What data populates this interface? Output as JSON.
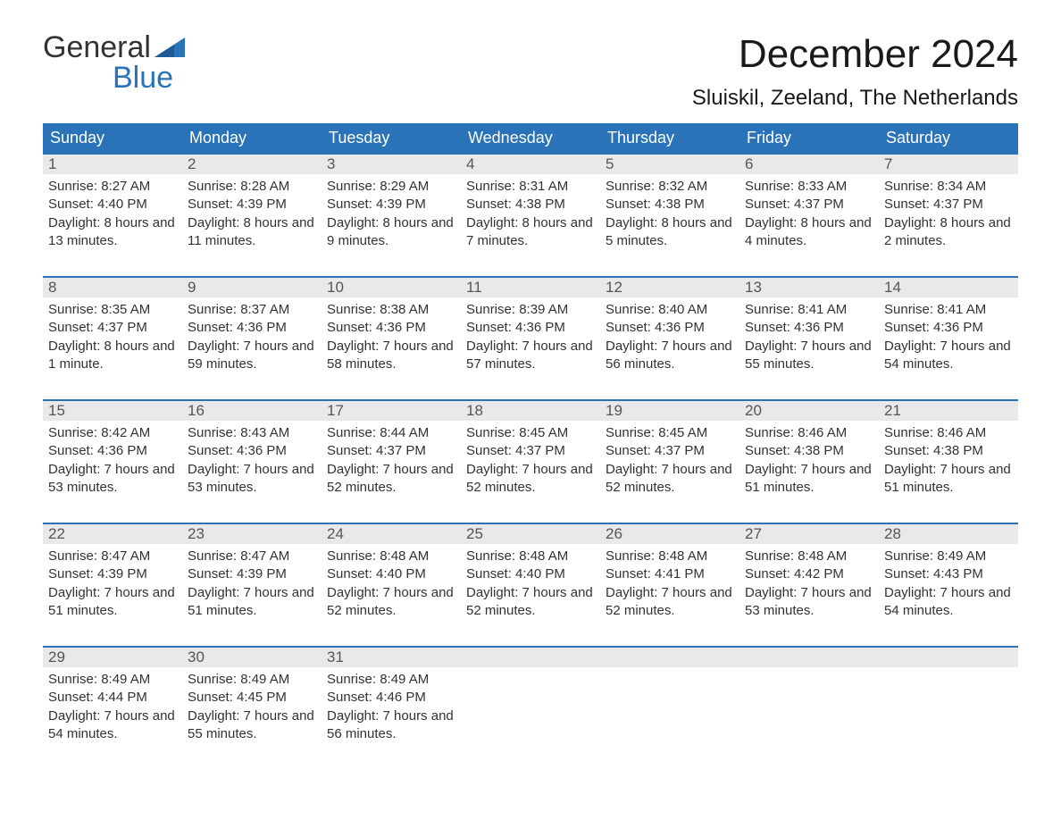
{
  "logo": {
    "word1": "General",
    "word2": "Blue"
  },
  "title": "December 2024",
  "location": "Sluiskil, Zeeland, The Netherlands",
  "header_bg": "#2a73b8",
  "header_fg": "#ffffff",
  "daynum_bg": "#e9e9e9",
  "week_border": "#2a73b8",
  "weekdays": [
    "Sunday",
    "Monday",
    "Tuesday",
    "Wednesday",
    "Thursday",
    "Friday",
    "Saturday"
  ],
  "weeks": [
    [
      {
        "n": "1",
        "sunrise": "8:27 AM",
        "sunset": "4:40 PM",
        "daylight": "8 hours and 13 minutes."
      },
      {
        "n": "2",
        "sunrise": "8:28 AM",
        "sunset": "4:39 PM",
        "daylight": "8 hours and 11 minutes."
      },
      {
        "n": "3",
        "sunrise": "8:29 AM",
        "sunset": "4:39 PM",
        "daylight": "8 hours and 9 minutes."
      },
      {
        "n": "4",
        "sunrise": "8:31 AM",
        "sunset": "4:38 PM",
        "daylight": "8 hours and 7 minutes."
      },
      {
        "n": "5",
        "sunrise": "8:32 AM",
        "sunset": "4:38 PM",
        "daylight": "8 hours and 5 minutes."
      },
      {
        "n": "6",
        "sunrise": "8:33 AM",
        "sunset": "4:37 PM",
        "daylight": "8 hours and 4 minutes."
      },
      {
        "n": "7",
        "sunrise": "8:34 AM",
        "sunset": "4:37 PM",
        "daylight": "8 hours and 2 minutes."
      }
    ],
    [
      {
        "n": "8",
        "sunrise": "8:35 AM",
        "sunset": "4:37 PM",
        "daylight": "8 hours and 1 minute."
      },
      {
        "n": "9",
        "sunrise": "8:37 AM",
        "sunset": "4:36 PM",
        "daylight": "7 hours and 59 minutes."
      },
      {
        "n": "10",
        "sunrise": "8:38 AM",
        "sunset": "4:36 PM",
        "daylight": "7 hours and 58 minutes."
      },
      {
        "n": "11",
        "sunrise": "8:39 AM",
        "sunset": "4:36 PM",
        "daylight": "7 hours and 57 minutes."
      },
      {
        "n": "12",
        "sunrise": "8:40 AM",
        "sunset": "4:36 PM",
        "daylight": "7 hours and 56 minutes."
      },
      {
        "n": "13",
        "sunrise": "8:41 AM",
        "sunset": "4:36 PM",
        "daylight": "7 hours and 55 minutes."
      },
      {
        "n": "14",
        "sunrise": "8:41 AM",
        "sunset": "4:36 PM",
        "daylight": "7 hours and 54 minutes."
      }
    ],
    [
      {
        "n": "15",
        "sunrise": "8:42 AM",
        "sunset": "4:36 PM",
        "daylight": "7 hours and 53 minutes."
      },
      {
        "n": "16",
        "sunrise": "8:43 AM",
        "sunset": "4:36 PM",
        "daylight": "7 hours and 53 minutes."
      },
      {
        "n": "17",
        "sunrise": "8:44 AM",
        "sunset": "4:37 PM",
        "daylight": "7 hours and 52 minutes."
      },
      {
        "n": "18",
        "sunrise": "8:45 AM",
        "sunset": "4:37 PM",
        "daylight": "7 hours and 52 minutes."
      },
      {
        "n": "19",
        "sunrise": "8:45 AM",
        "sunset": "4:37 PM",
        "daylight": "7 hours and 52 minutes."
      },
      {
        "n": "20",
        "sunrise": "8:46 AM",
        "sunset": "4:38 PM",
        "daylight": "7 hours and 51 minutes."
      },
      {
        "n": "21",
        "sunrise": "8:46 AM",
        "sunset": "4:38 PM",
        "daylight": "7 hours and 51 minutes."
      }
    ],
    [
      {
        "n": "22",
        "sunrise": "8:47 AM",
        "sunset": "4:39 PM",
        "daylight": "7 hours and 51 minutes."
      },
      {
        "n": "23",
        "sunrise": "8:47 AM",
        "sunset": "4:39 PM",
        "daylight": "7 hours and 51 minutes."
      },
      {
        "n": "24",
        "sunrise": "8:48 AM",
        "sunset": "4:40 PM",
        "daylight": "7 hours and 52 minutes."
      },
      {
        "n": "25",
        "sunrise": "8:48 AM",
        "sunset": "4:40 PM",
        "daylight": "7 hours and 52 minutes."
      },
      {
        "n": "26",
        "sunrise": "8:48 AM",
        "sunset": "4:41 PM",
        "daylight": "7 hours and 52 minutes."
      },
      {
        "n": "27",
        "sunrise": "8:48 AM",
        "sunset": "4:42 PM",
        "daylight": "7 hours and 53 minutes."
      },
      {
        "n": "28",
        "sunrise": "8:49 AM",
        "sunset": "4:43 PM",
        "daylight": "7 hours and 54 minutes."
      }
    ],
    [
      {
        "n": "29",
        "sunrise": "8:49 AM",
        "sunset": "4:44 PM",
        "daylight": "7 hours and 54 minutes."
      },
      {
        "n": "30",
        "sunrise": "8:49 AM",
        "sunset": "4:45 PM",
        "daylight": "7 hours and 55 minutes."
      },
      {
        "n": "31",
        "sunrise": "8:49 AM",
        "sunset": "4:46 PM",
        "daylight": "7 hours and 56 minutes."
      },
      null,
      null,
      null,
      null
    ]
  ],
  "labels": {
    "sunrise": "Sunrise: ",
    "sunset": "Sunset: ",
    "daylight": "Daylight: "
  }
}
